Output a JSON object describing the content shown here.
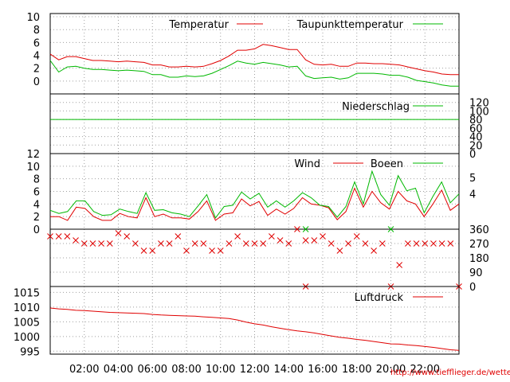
{
  "colors": {
    "red": "#e00000",
    "green": "#00b800",
    "axis": "#000000",
    "grid": "#a0a0a0",
    "url": "#e00000"
  },
  "footer_url": "http://www.tiefflieger.de/wetter/",
  "x_ticks": [
    "02:00",
    "04:00",
    "06:00",
    "08:00",
    "10:00",
    "12:00",
    "14:00",
    "16:00",
    "18:00",
    "20:00",
    "22:00"
  ],
  "chart_data": [
    {
      "type": "line",
      "x_unit": "hour",
      "x_range": [
        0,
        24
      ],
      "ylim": [
        -2,
        10.5
      ],
      "y_ticks": [
        0,
        2,
        4,
        6,
        8,
        10
      ],
      "grid": true,
      "legend_position": "top-right",
      "series": [
        {
          "name": "Temperatur",
          "color": "red",
          "values": [
            4.2,
            3.3,
            3.8,
            3.8,
            3.5,
            3.2,
            3.2,
            3.1,
            3.0,
            3.1,
            3.0,
            2.9,
            2.5,
            2.5,
            2.2,
            2.2,
            2.3,
            2.2,
            2.3,
            2.7,
            3.2,
            3.9,
            4.8,
            4.8,
            5.0,
            5.7,
            5.5,
            5.2,
            4.9,
            4.9,
            3.3,
            2.6,
            2.5,
            2.6,
            2.3,
            2.3,
            2.8,
            2.8,
            2.7,
            2.7,
            2.6,
            2.5,
            2.2,
            1.9,
            1.6,
            1.4,
            1.1,
            1.0,
            1.0
          ]
        },
        {
          "name": "Taupunkttemperatur",
          "color": "green",
          "values": [
            3.2,
            1.4,
            2.2,
            2.3,
            2.0,
            1.8,
            1.8,
            1.7,
            1.6,
            1.7,
            1.6,
            1.5,
            1.0,
            1.0,
            0.6,
            0.6,
            0.8,
            0.7,
            0.8,
            1.2,
            1.8,
            2.4,
            3.1,
            2.8,
            2.6,
            2.9,
            2.7,
            2.5,
            2.2,
            2.3,
            0.8,
            0.4,
            0.5,
            0.6,
            0.3,
            0.5,
            1.2,
            1.2,
            1.2,
            1.1,
            0.9,
            0.9,
            0.6,
            0.1,
            -0.1,
            -0.3,
            -0.6,
            -0.8,
            -0.8
          ]
        }
      ]
    },
    {
      "type": "line",
      "x_unit": "hour",
      "x_range": [
        0,
        24
      ],
      "ylim": [
        0,
        140
      ],
      "y_ticks": [
        0,
        20,
        40,
        60,
        80,
        100,
        120
      ],
      "y_axis_side": "right",
      "grid": true,
      "legend_position": "top-right",
      "series": [
        {
          "name": "Niederschlag",
          "color": "green",
          "values": [
            80,
            80,
            80,
            80,
            80,
            80,
            80,
            80,
            80,
            80,
            80,
            80,
            80,
            80,
            80,
            80,
            80,
            80,
            80,
            80,
            80,
            80,
            80,
            80,
            80,
            80,
            80,
            80,
            80,
            80,
            80,
            80,
            80,
            80,
            80,
            80,
            80,
            80,
            80,
            80,
            80,
            80,
            80,
            80,
            80,
            80,
            80,
            80,
            80
          ]
        }
      ]
    },
    {
      "type": "line",
      "x_unit": "hour",
      "x_range": [
        0,
        24
      ],
      "ylim": [
        0,
        12
      ],
      "y_ticks": [
        0,
        2,
        4,
        6,
        8,
        10,
        12
      ],
      "right_axis_labels": [
        {
          "label": "5",
          "at": 8.2
        },
        {
          "label": "4",
          "at": 5.6
        }
      ],
      "grid": true,
      "legend_position": "top-right",
      "series": [
        {
          "name": "Wind",
          "color": "red",
          "values": [
            2.0,
            2.0,
            1.4,
            3.5,
            3.3,
            2.0,
            1.4,
            1.4,
            2.5,
            2.0,
            1.8,
            5.0,
            2.0,
            2.4,
            1.8,
            1.8,
            1.6,
            2.8,
            4.5,
            1.4,
            2.4,
            2.6,
            4.8,
            3.7,
            4.4,
            2.2,
            3.2,
            2.4,
            3.3,
            5.0,
            4.0,
            3.8,
            3.4,
            1.5,
            2.8,
            6.5,
            3.5,
            6.0,
            4.2,
            3.2,
            6.0,
            4.5,
            4.0,
            2.0,
            4.0,
            6.2,
            3.0,
            4.0
          ]
        },
        {
          "name": "Boeen",
          "color": "green",
          "values": [
            3.0,
            2.5,
            2.8,
            4.5,
            4.5,
            2.8,
            2.2,
            2.3,
            3.2,
            2.8,
            2.5,
            5.8,
            3.0,
            3.1,
            2.6,
            2.4,
            2.0,
            3.7,
            5.5,
            1.8,
            3.6,
            3.8,
            5.9,
            4.8,
            5.7,
            3.5,
            4.5,
            3.5,
            4.5,
            5.8,
            5.0,
            3.8,
            3.6,
            1.9,
            3.6,
            7.5,
            4.0,
            9.2,
            5.5,
            3.8,
            8.5,
            6.1,
            6.5,
            2.6,
            5.2,
            7.5,
            4.2,
            5.6
          ]
        }
      ]
    },
    {
      "type": "scatter",
      "x_unit": "hour",
      "x_range": [
        0,
        24
      ],
      "ylim": [
        0,
        360
      ],
      "y_ticks": [
        0,
        90,
        180,
        270,
        360
      ],
      "y_axis_side": "right",
      "grid": true,
      "marker": "x",
      "series": [
        {
          "color": "red",
          "x": [
            0.0,
            0.5,
            1.0,
            1.5,
            2.0,
            2.5,
            3.0,
            3.5,
            4.0,
            4.5,
            5.0,
            5.5,
            6.0,
            6.5,
            7.0,
            7.5,
            8.0,
            8.5,
            9.0,
            9.5,
            10.0,
            10.5,
            11.0,
            11.5,
            12.0,
            12.5,
            13.0,
            13.5,
            14.0,
            14.5,
            15.0,
            15.5,
            16.0,
            16.5,
            17.0,
            17.5,
            18.0,
            18.5,
            19.0,
            19.5,
            20.0,
            20.5,
            21.0,
            21.5,
            22.0,
            22.5,
            23.0,
            23.5,
            24.0,
            15.0
          ],
          "values": [
            315,
            315,
            315,
            290,
            270,
            270,
            270,
            270,
            335,
            315,
            270,
            225,
            225,
            270,
            270,
            315,
            225,
            270,
            270,
            225,
            225,
            270,
            315,
            270,
            270,
            270,
            315,
            290,
            270,
            360,
            290,
            290,
            315,
            270,
            225,
            270,
            315,
            270,
            225,
            270,
            0,
            135,
            270,
            270,
            270,
            270,
            270,
            270,
            0,
            0
          ]
        },
        {
          "color": "green",
          "x": [
            15.0,
            20.0
          ],
          "values": [
            360,
            360
          ]
        }
      ]
    },
    {
      "type": "line",
      "x_unit": "hour",
      "x_range": [
        0,
        24
      ],
      "ylim": [
        994,
        1017
      ],
      "y_ticks": [
        995,
        1000,
        1005,
        1010,
        1015
      ],
      "grid": true,
      "legend_position": "top-right",
      "series": [
        {
          "name": "Luftdruck",
          "color": "red",
          "values": [
            1009.7,
            1009.4,
            1009.2,
            1008.9,
            1008.8,
            1008.6,
            1008.4,
            1008.2,
            1008.1,
            1008.0,
            1007.9,
            1007.8,
            1007.5,
            1007.3,
            1007.2,
            1007.1,
            1007.0,
            1006.9,
            1006.7,
            1006.5,
            1006.3,
            1006.1,
            1005.6,
            1004.9,
            1004.3,
            1003.9,
            1003.3,
            1002.8,
            1002.3,
            1001.9,
            1001.6,
            1001.2,
            1000.7,
            1000.2,
            999.7,
            999.4,
            999.0,
            998.7,
            998.3,
            997.9,
            997.5,
            997.4,
            997.1,
            996.9,
            996.6,
            996.3,
            995.9,
            995.5,
            995.3
          ]
        }
      ]
    }
  ]
}
